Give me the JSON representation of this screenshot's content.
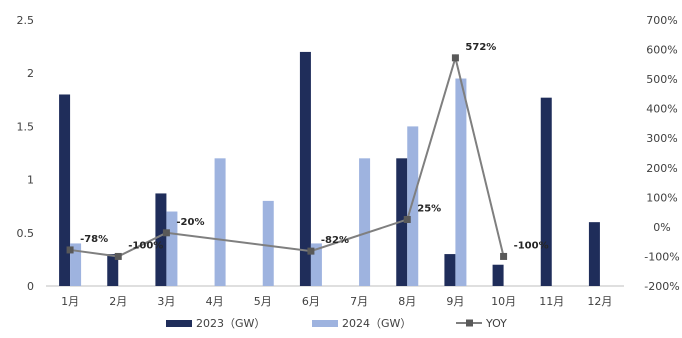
{
  "chart_data": {
    "type": "bar",
    "categories": [
      "1月",
      "2月",
      "3月",
      "4月",
      "5月",
      "6月",
      "7月",
      "8月",
      "9月",
      "10月",
      "11月",
      "12月"
    ],
    "series": [
      {
        "name": "2023（GW）",
        "type": "bar",
        "axis": "left",
        "color": "#1f2d5a",
        "values": [
          1.8,
          0.3,
          0.87,
          null,
          null,
          2.2,
          null,
          1.2,
          0.3,
          0.2,
          1.77,
          0.6
        ]
      },
      {
        "name": "2024（GW）",
        "type": "bar",
        "axis": "left",
        "color": "#9eb3df",
        "values": [
          0.4,
          0.0,
          0.7,
          1.2,
          0.8,
          0.4,
          1.2,
          1.5,
          1.95,
          0.0,
          null,
          null
        ]
      },
      {
        "name": "YOY",
        "type": "line",
        "axis": "right",
        "color": "#7f7f7f",
        "values": [
          -78,
          -100,
          -20,
          null,
          null,
          -82,
          null,
          25,
          572,
          -100,
          null,
          null
        ],
        "labels": [
          "-78%",
          "-100%",
          "-20%",
          null,
          null,
          "-82%",
          null,
          "25%",
          "572%",
          "-100%",
          null,
          null
        ]
      }
    ],
    "y_left": {
      "ylim": [
        0,
        2.5
      ],
      "ticks": [
        "0",
        "0.5",
        "1",
        "1.5",
        "2",
        "2.5"
      ]
    },
    "y_right": {
      "ylim": [
        -200,
        700
      ],
      "ticks": [
        "-200%",
        "-100%",
        "0%",
        "100%",
        "200%",
        "300%",
        "400%",
        "500%",
        "600%",
        "700%"
      ]
    },
    "legend_position": "bottom",
    "grid": false
  }
}
